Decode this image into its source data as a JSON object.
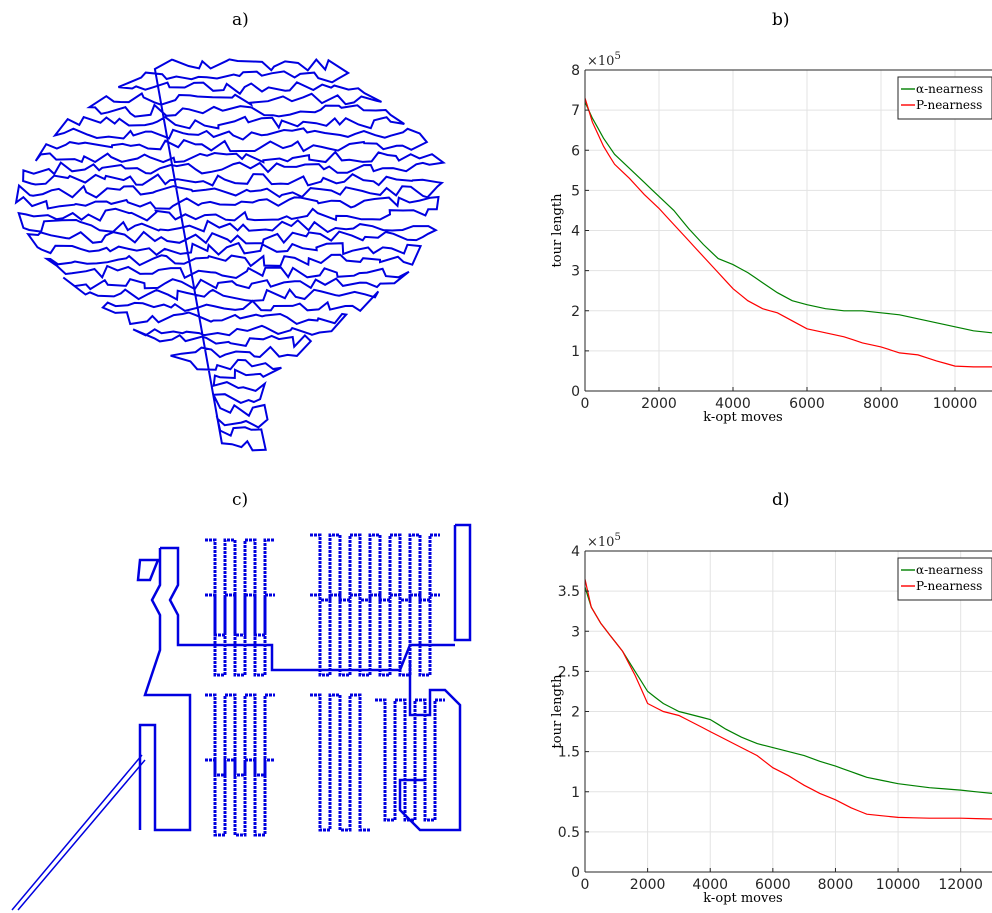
{
  "panels": {
    "a": "a)",
    "b": "b)",
    "c": "c)",
    "d": "d)"
  },
  "colors": {
    "tour": "#0000e0",
    "alpha_series": "#008000",
    "p_series": "#ff0000",
    "grid": "#e3e3e3",
    "axis": "#262626"
  },
  "chart_data": [
    {
      "panel": "b",
      "type": "line",
      "title": "",
      "xlabel": "k-opt moves",
      "ylabel": "tour length",
      "exponent_label": "×10",
      "exponent": "5",
      "xlim": [
        0,
        11000
      ],
      "ylim": [
        0,
        8
      ],
      "xticks": [
        0,
        2000,
        4000,
        6000,
        8000,
        10000
      ],
      "xtick_labels": [
        "0",
        "2000",
        "4000",
        "6000",
        "8000",
        "10000"
      ],
      "yticks": [
        0,
        1,
        2,
        3,
        4,
        5,
        6,
        7,
        8
      ],
      "ytick_labels": [
        "0",
        "1",
        "2",
        "3",
        "4",
        "5",
        "6",
        "7",
        "8"
      ],
      "grid": true,
      "legend_position": "top-right",
      "series": [
        {
          "name": "α-nearness",
          "color": "#008000",
          "x": [
            0,
            200,
            500,
            800,
            1200,
            1600,
            2000,
            2400,
            2800,
            3200,
            3600,
            4000,
            4400,
            4800,
            5200,
            5600,
            6000,
            6500,
            7000,
            7500,
            8000,
            8500,
            9000,
            9500,
            10000,
            10500,
            11000
          ],
          "y": [
            7.2,
            6.8,
            6.3,
            5.9,
            5.55,
            5.2,
            4.85,
            4.5,
            4.05,
            3.65,
            3.3,
            3.15,
            2.95,
            2.7,
            2.45,
            2.25,
            2.15,
            2.05,
            2.0,
            2.0,
            1.95,
            1.9,
            1.8,
            1.7,
            1.6,
            1.5,
            1.45
          ]
        },
        {
          "name": "P-nearness",
          "color": "#ff0000",
          "x": [
            0,
            200,
            500,
            800,
            1200,
            1600,
            2000,
            2400,
            2800,
            3200,
            3600,
            4000,
            4400,
            4800,
            5200,
            5600,
            6000,
            6500,
            7000,
            7500,
            8000,
            8500,
            9000,
            9500,
            10000,
            10500,
            11000
          ],
          "y": [
            7.3,
            6.7,
            6.1,
            5.65,
            5.3,
            4.9,
            4.55,
            4.15,
            3.75,
            3.35,
            2.95,
            2.55,
            2.25,
            2.05,
            1.95,
            1.75,
            1.55,
            1.45,
            1.35,
            1.2,
            1.1,
            0.95,
            0.9,
            0.75,
            0.62,
            0.6,
            0.6
          ]
        }
      ]
    },
    {
      "panel": "d",
      "type": "line",
      "title": "",
      "xlabel": "k-opt moves",
      "ylabel": "tour length",
      "exponent_label": "×10",
      "exponent": "5",
      "xlim": [
        0,
        13000
      ],
      "ylim": [
        0,
        4
      ],
      "xticks": [
        0,
        2000,
        4000,
        6000,
        8000,
        10000,
        12000
      ],
      "xtick_labels": [
        "0",
        "2000",
        "4000",
        "6000",
        "8000",
        "10000",
        "12000"
      ],
      "yticks": [
        0,
        0.5,
        1,
        1.5,
        2,
        2.5,
        3,
        3.5,
        4
      ],
      "ytick_labels": [
        "0",
        "0.5",
        "1",
        "1.5",
        "2",
        "2.5",
        "3",
        "3.5",
        "4"
      ],
      "grid": true,
      "legend_position": "top-right",
      "series": [
        {
          "name": "α-nearness",
          "color": "#008000",
          "x": [
            0,
            200,
            500,
            800,
            1200,
            1600,
            2000,
            2500,
            3000,
            3500,
            4000,
            4500,
            5000,
            5500,
            6000,
            6500,
            7000,
            7500,
            8000,
            8500,
            9000,
            10000,
            11000,
            12000,
            13000
          ],
          "y": [
            3.55,
            3.3,
            3.1,
            2.95,
            2.75,
            2.5,
            2.25,
            2.1,
            2.0,
            1.95,
            1.9,
            1.78,
            1.68,
            1.6,
            1.55,
            1.5,
            1.45,
            1.38,
            1.32,
            1.25,
            1.18,
            1.1,
            1.05,
            1.02,
            0.98
          ]
        },
        {
          "name": "P-nearness",
          "color": "#ff0000",
          "x": [
            0,
            200,
            500,
            800,
            1200,
            1600,
            2000,
            2500,
            3000,
            3500,
            4000,
            4500,
            5000,
            5500,
            6000,
            6500,
            7000,
            7500,
            8000,
            8500,
            9000,
            10000,
            11000,
            12000,
            13000
          ],
          "y": [
            3.65,
            3.3,
            3.1,
            2.95,
            2.75,
            2.45,
            2.1,
            2.0,
            1.95,
            1.85,
            1.75,
            1.65,
            1.55,
            1.45,
            1.3,
            1.2,
            1.08,
            0.98,
            0.9,
            0.8,
            0.72,
            0.68,
            0.67,
            0.67,
            0.66
          ]
        }
      ]
    }
  ]
}
